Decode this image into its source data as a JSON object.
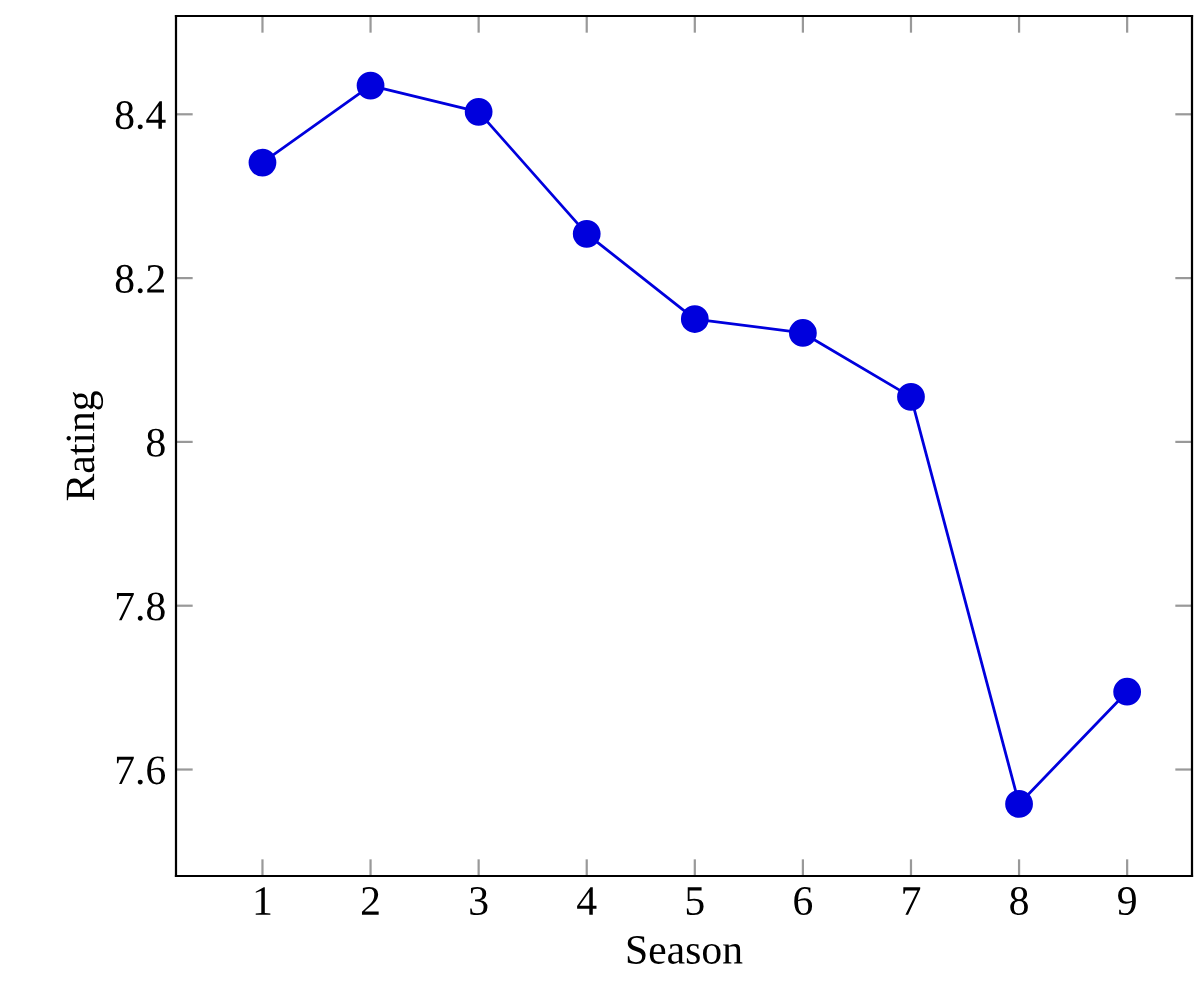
{
  "chart_data": {
    "type": "line",
    "xlabel": "Season",
    "ylabel": "Rating",
    "x": [
      1,
      2,
      3,
      4,
      5,
      6,
      7,
      8,
      9
    ],
    "series": [
      {
        "color": "#0000dd",
        "values": [
          8.341,
          8.435,
          8.403,
          8.254,
          8.15,
          8.133,
          8.055,
          7.558,
          7.695
        ]
      }
    ],
    "xlim": [
      0.2,
      9.6
    ],
    "ylim": [
      7.47,
      8.52
    ],
    "xticks": [
      1,
      2,
      3,
      4,
      5,
      6,
      7,
      8,
      9
    ],
    "yticks": [
      {
        "value": 7.6,
        "label": "7.6"
      },
      {
        "value": 7.8,
        "label": "7.8"
      },
      {
        "value": 8,
        "label": "8"
      },
      {
        "value": 8.2,
        "label": "8.2"
      },
      {
        "value": 8.4,
        "label": "8.4"
      }
    ],
    "marker": "circle",
    "line_style": "solid",
    "grid": false,
    "legend": false
  }
}
